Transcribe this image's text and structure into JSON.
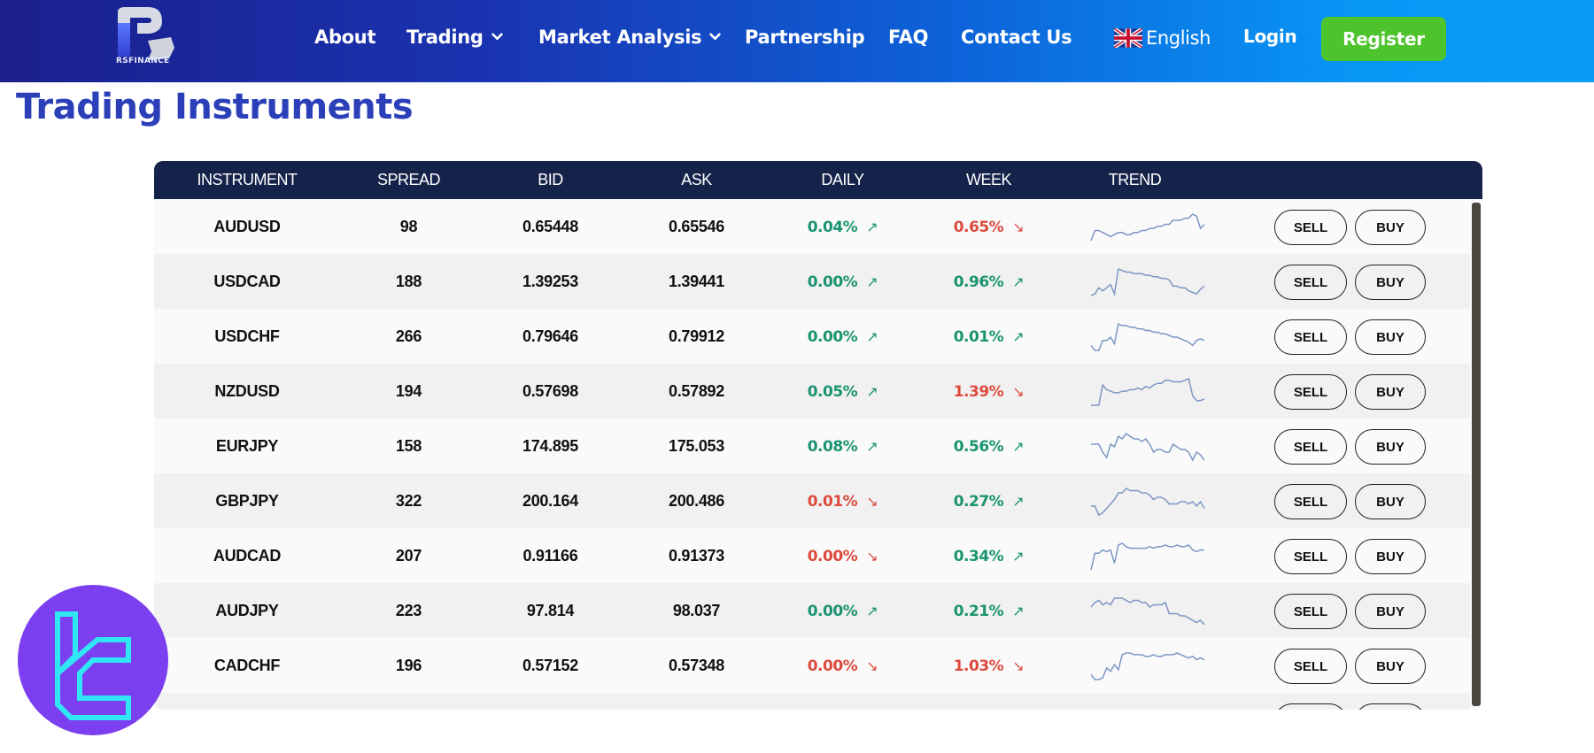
{
  "brand": {
    "logo_text": "RSFINANCE"
  },
  "nav": {
    "items": [
      {
        "label": "About",
        "dropdown": false
      },
      {
        "label": "Trading",
        "dropdown": true
      },
      {
        "label": "Market Analysis",
        "dropdown": true
      },
      {
        "label": "Partnership",
        "dropdown": false
      },
      {
        "label": "FAQ",
        "dropdown": false
      },
      {
        "label": "Contact Us",
        "dropdown": false
      }
    ],
    "language": "English",
    "login": "Login",
    "register": "Register"
  },
  "page": {
    "title": "Trading Instruments"
  },
  "colors": {
    "up": "#1a9470",
    "down": "#dc4a3d",
    "header_bg": "#15234a",
    "register_bg": "#4ec42c",
    "title": "#2a3fb8"
  },
  "table": {
    "columns": [
      "INSTRUMENT",
      "SPREAD",
      "BID",
      "ASK",
      "DAILY",
      "WEEK",
      "TREND"
    ],
    "sell_label": "SELL",
    "buy_label": "BUY",
    "rows": [
      {
        "instrument": "AUDUSD",
        "spread": "98",
        "bid": "0.65448",
        "ask": "0.65546",
        "daily": "0.04%",
        "daily_dir": "up",
        "week": "0.65%",
        "week_dir": "down",
        "trend": [
          3,
          8,
          8,
          7,
          6,
          5,
          6,
          7,
          7,
          6,
          6,
          7,
          7,
          8,
          8,
          9,
          9,
          10,
          10,
          11,
          11,
          13,
          13,
          13,
          14,
          14,
          16,
          15,
          9,
          11
        ]
      },
      {
        "instrument": "USDCAD",
        "spread": "188",
        "bid": "1.39253",
        "ask": "1.39441",
        "daily": "0.00%",
        "daily_dir": "up",
        "week": "0.96%",
        "week_dir": "up",
        "trend": [
          3,
          4,
          8,
          6,
          8,
          10,
          4,
          20,
          19,
          18,
          18,
          17,
          17,
          17,
          16,
          16,
          15,
          15,
          14,
          14,
          13,
          9,
          9,
          8,
          8,
          6,
          5,
          4,
          7,
          9
        ]
      },
      {
        "instrument": "USDCHF",
        "spread": "266",
        "bid": "0.79646",
        "ask": "0.79912",
        "daily": "0.00%",
        "daily_dir": "up",
        "week": "0.01%",
        "week_dir": "up",
        "trend": [
          5,
          2,
          2,
          8,
          8,
          10,
          6,
          18,
          17,
          17,
          16,
          16,
          15,
          15,
          14,
          14,
          13,
          13,
          12,
          12,
          11,
          10,
          10,
          9,
          8,
          7,
          5,
          8,
          9,
          8
        ]
      },
      {
        "instrument": "NZDUSD",
        "spread": "194",
        "bid": "0.57698",
        "ask": "0.57892",
        "daily": "0.05%",
        "daily_dir": "up",
        "week": "1.39%",
        "week_dir": "down",
        "trend": [
          2,
          2,
          2,
          15,
          12,
          11,
          10,
          10,
          11,
          11,
          12,
          12,
          13,
          12,
          14,
          13,
          15,
          16,
          16,
          18,
          18,
          17,
          17,
          17,
          18,
          19,
          8,
          5,
          5,
          6
        ]
      },
      {
        "instrument": "EURJPY",
        "spread": "158",
        "bid": "174.895",
        "ask": "175.053",
        "daily": "0.08%",
        "daily_dir": "up",
        "week": "0.56%",
        "week_dir": "up",
        "trend": [
          12,
          12,
          12,
          9,
          7,
          12,
          11,
          15,
          14,
          16,
          15,
          14,
          14,
          13,
          14,
          12,
          9,
          10,
          10,
          9,
          9,
          12,
          11,
          10,
          10,
          9,
          6,
          9,
          8,
          6
        ]
      },
      {
        "instrument": "GBPJPY",
        "spread": "322",
        "bid": "200.164",
        "ask": "200.486",
        "daily": "0.01%",
        "daily_dir": "down",
        "week": "0.27%",
        "week_dir": "up",
        "trend": [
          8,
          8,
          4,
          5,
          7,
          9,
          11,
          14,
          14,
          16,
          15,
          15,
          15,
          14,
          14,
          13,
          11,
          12,
          12,
          11,
          9,
          9,
          9,
          10,
          10,
          9,
          10,
          8,
          10,
          7
        ]
      },
      {
        "instrument": "AUDCAD",
        "spread": "207",
        "bid": "0.91166",
        "ask": "0.91373",
        "daily": "0.00%",
        "daily_dir": "down",
        "week": "0.34%",
        "week_dir": "up",
        "trend": [
          2,
          12,
          12,
          14,
          13,
          14,
          6,
          17,
          18,
          16,
          15,
          15,
          15,
          15,
          15,
          16,
          15,
          16,
          16,
          17,
          16,
          16,
          17,
          16,
          16,
          17,
          14,
          13,
          14,
          14
        ]
      },
      {
        "instrument": "AUDJPY",
        "spread": "223",
        "bid": "97.814",
        "ask": "98.037",
        "daily": "0.00%",
        "daily_dir": "up",
        "week": "0.21%",
        "week_dir": "up",
        "trend": [
          12,
          14,
          15,
          13,
          14,
          13,
          16,
          16,
          16,
          15,
          14,
          15,
          15,
          14,
          14,
          12,
          13,
          13,
          13,
          14,
          9,
          9,
          9,
          8,
          8,
          7,
          6,
          5,
          6,
          4
        ]
      },
      {
        "instrument": "CADCHF",
        "spread": "196",
        "bid": "0.57152",
        "ask": "0.57348",
        "daily": "0.00%",
        "daily_dir": "down",
        "week": "1.03%",
        "week_dir": "down",
        "trend": [
          4,
          1,
          1,
          2,
          8,
          6,
          10,
          7,
          16,
          17,
          17,
          16,
          16,
          16,
          15,
          15,
          16,
          15,
          15,
          16,
          16,
          16,
          17,
          16,
          15,
          14,
          15,
          13,
          14,
          13
        ]
      }
    ]
  }
}
